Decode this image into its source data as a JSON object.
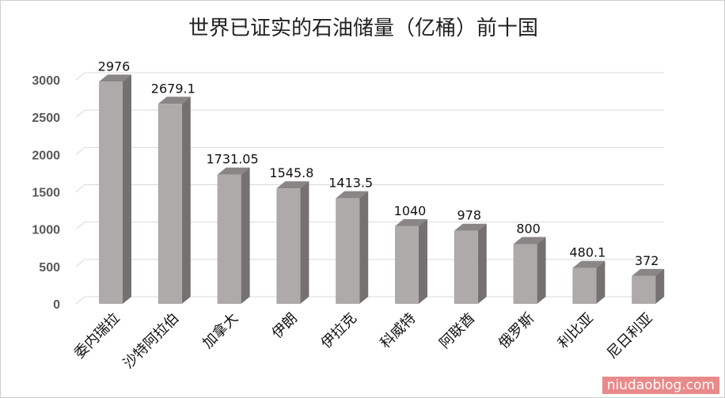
{
  "chart_data": {
    "type": "bar",
    "title": "世界已证实的石油储量（亿桶）前十国",
    "categories": [
      "委内瑞拉",
      "沙特阿拉伯",
      "加拿大",
      "伊朗",
      "伊拉克",
      "科威特",
      "阿联酋",
      "俄罗斯",
      "利比亚",
      "尼日利亚"
    ],
    "values": [
      2976,
      2679.1,
      1731.05,
      1545.8,
      1413.5,
      1040,
      978,
      800,
      480.1,
      372
    ],
    "value_labels": [
      "2976",
      "2679.1",
      "1731.05",
      "1545.8",
      "1413.5",
      "1040",
      "978",
      "800",
      "480.1",
      "372"
    ],
    "xlabel": "",
    "ylabel": "",
    "ylim": [
      0,
      3000
    ],
    "yticks": [
      "0",
      "500",
      "1000",
      "1500",
      "2000",
      "2500",
      "3000"
    ],
    "grid": true,
    "bar_color": "#aeaaaa",
    "bar_side_color": "#757171"
  },
  "watermark": "niudaoblog.com"
}
